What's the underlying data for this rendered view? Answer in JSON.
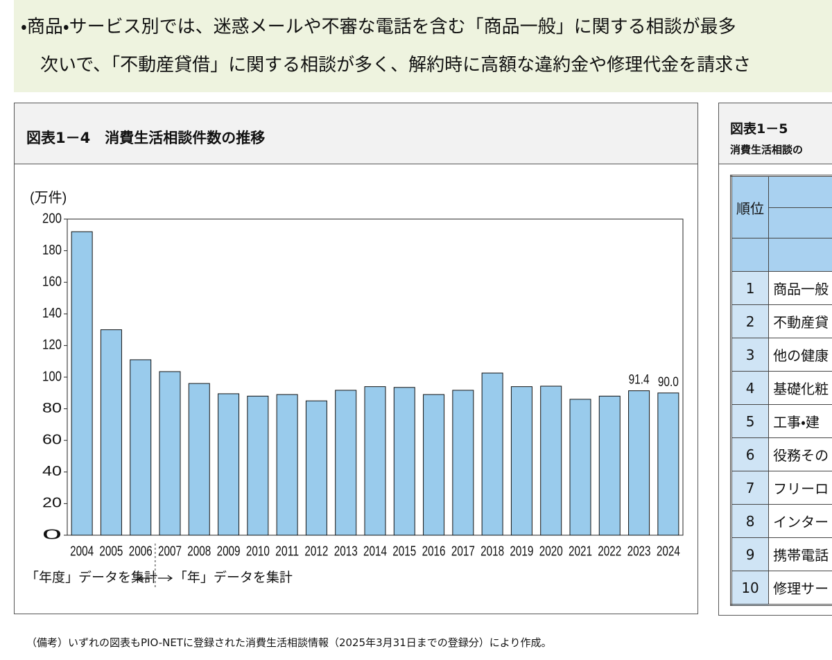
{
  "banner": {
    "lines": [
      "・商品・サービス別では、迷惑メールや不審な電話を含む「商品一般」に関する相談が最多",
      "次いで、「不動産貸借」に関する相談が多く、解約時に高額な違約金や修理代金を請求さ"
    ]
  },
  "chart_data": {
    "type": "bar",
    "title": "図表1－4　消費生活相談件数の推移",
    "y_label": "(万件)",
    "categories": [
      "2004",
      "2005",
      "2006",
      "2007",
      "2008",
      "2009",
      "2010",
      "2011",
      "2012",
      "2013",
      "2014",
      "2015",
      "2016",
      "2017",
      "2018",
      "2019",
      "2020",
      "2021",
      "2022",
      "2023",
      "2024"
    ],
    "values": [
      192,
      130,
      111,
      103.5,
      96,
      89.5,
      88,
      89,
      85,
      91.7,
      94,
      93.5,
      89,
      91.7,
      102.6,
      94,
      94.3,
      86,
      88,
      91.4,
      90.0
    ],
    "value_labels": [
      null,
      null,
      null,
      null,
      null,
      null,
      null,
      null,
      null,
      null,
      null,
      null,
      null,
      null,
      null,
      null,
      null,
      null,
      null,
      "91.4",
      "90.0"
    ],
    "color": "#99cbec",
    "ylim": [
      0,
      200
    ],
    "yticks": [
      0,
      20,
      40,
      60,
      80,
      100,
      120,
      140,
      160,
      180,
      200
    ],
    "period_notes": [
      "「年度」データを集計",
      "「年」データを集計"
    ]
  },
  "ranking_table": {
    "title": "図表1－5",
    "subtitle": "消費生活相談の",
    "header": "順位",
    "rows": [
      [
        1,
        "商品一般"
      ],
      [
        2,
        "不動産貸"
      ],
      [
        3,
        "他の健康"
      ],
      [
        4,
        "基礎化粧"
      ],
      [
        5,
        "工事・建"
      ],
      [
        6,
        "役務その"
      ],
      [
        7,
        "フリーロ"
      ],
      [
        8,
        "インター"
      ],
      [
        9,
        "携帯電話"
      ],
      [
        10,
        "修理サー"
      ]
    ]
  },
  "note": "（備考）いずれの図表もPIO-NETに登録された消費生活相談情報（2025年3月31日までの登録分）により作成。"
}
